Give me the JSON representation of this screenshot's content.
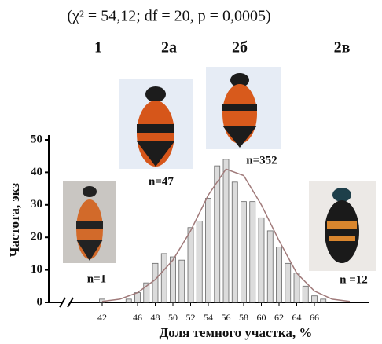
{
  "chart_data": {
    "type": "bar",
    "title": "(χ² = 54,12; df = 20, p = 0,0005)",
    "y_label": "Частота, экз",
    "x_label": "Доля темного участка, %",
    "groups": [
      "1",
      "2а",
      "2б",
      "2в"
    ],
    "group_counts": [
      "n=1",
      "n=47",
      "n=352",
      "n =12"
    ],
    "x": [
      42,
      45,
      46,
      47,
      48,
      49,
      50,
      51,
      52,
      53,
      54,
      55,
      56,
      57,
      58,
      59,
      60,
      61,
      62,
      63,
      64,
      65,
      66,
      67
    ],
    "values": [
      1,
      1,
      3,
      6,
      12,
      15,
      14,
      13,
      23,
      25,
      32,
      42,
      44,
      37,
      31,
      31,
      26,
      22,
      17,
      12,
      9,
      5,
      2,
      1
    ],
    "color": "#dcdcdc",
    "curve": {
      "color": "#a07a7a",
      "x": [
        42,
        44,
        46,
        48,
        50,
        52,
        54,
        56,
        58,
        60,
        62,
        64,
        66,
        68,
        70
      ],
      "values": [
        0.3,
        1,
        3,
        7,
        13,
        22,
        33,
        41,
        39,
        30,
        19,
        9,
        3.5,
        1,
        0.3
      ]
    },
    "xlim": [
      38,
      72
    ],
    "xticks": [
      42,
      46,
      48,
      50,
      52,
      54,
      56,
      58,
      60,
      62,
      64,
      66
    ],
    "ylim": [
      0,
      50
    ],
    "yticks": [
      0,
      10,
      20,
      30,
      40,
      50
    ]
  }
}
